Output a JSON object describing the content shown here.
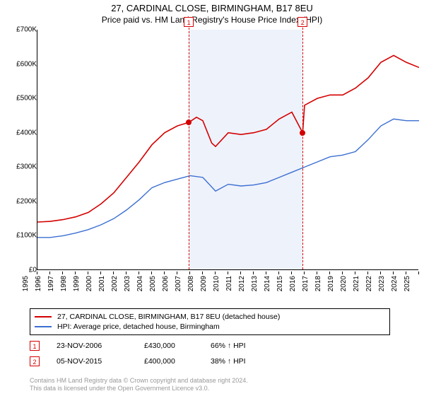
{
  "title_line1": "27, CARDINAL CLOSE, BIRMINGHAM, B17 8EU",
  "title_line2": "Price paid vs. HM Land Registry's House Price Index (HPI)",
  "chart": {
    "type": "line",
    "background_color": "#ffffff",
    "shaded_band_color": "#eef2fb",
    "axis_color": "#000000",
    "series": [
      {
        "key": "property",
        "label": "   27, CARDINAL CLOSE, BIRMINGHAM, B17 8EU (detached house)",
        "color": "#d40000",
        "line_width": 1.6,
        "data": [
          [
            1995,
            140000
          ],
          [
            1996,
            142000
          ],
          [
            1997,
            147000
          ],
          [
            1998,
            155000
          ],
          [
            1999,
            168000
          ],
          [
            2000,
            193000
          ],
          [
            2001,
            225000
          ],
          [
            2002,
            270000
          ],
          [
            2003,
            315000
          ],
          [
            2004,
            365000
          ],
          [
            2005,
            400000
          ],
          [
            2006,
            420000
          ],
          [
            2006.9,
            430000
          ],
          [
            2007.5,
            445000
          ],
          [
            2008,
            435000
          ],
          [
            2008.7,
            370000
          ],
          [
            2009,
            360000
          ],
          [
            2010,
            400000
          ],
          [
            2011,
            395000
          ],
          [
            2012,
            400000
          ],
          [
            2013,
            410000
          ],
          [
            2014,
            440000
          ],
          [
            2015,
            460000
          ],
          [
            2015.85,
            400000
          ],
          [
            2016,
            480000
          ],
          [
            2017,
            500000
          ],
          [
            2018,
            510000
          ],
          [
            2019,
            510000
          ],
          [
            2020,
            530000
          ],
          [
            2021,
            560000
          ],
          [
            2022,
            605000
          ],
          [
            2023,
            625000
          ],
          [
            2024,
            605000
          ],
          [
            2025,
            590000
          ]
        ]
      },
      {
        "key": "hpi",
        "label": "   HPI: Average price, detached house, Birmingham",
        "color": "#3b6fd1",
        "line_width": 1.4,
        "data": [
          [
            1995,
            95000
          ],
          [
            1996,
            95000
          ],
          [
            1997,
            100000
          ],
          [
            1998,
            108000
          ],
          [
            1999,
            118000
          ],
          [
            2000,
            132000
          ],
          [
            2001,
            150000
          ],
          [
            2002,
            175000
          ],
          [
            2003,
            205000
          ],
          [
            2004,
            240000
          ],
          [
            2005,
            255000
          ],
          [
            2006,
            265000
          ],
          [
            2007,
            275000
          ],
          [
            2008,
            270000
          ],
          [
            2009,
            230000
          ],
          [
            2010,
            250000
          ],
          [
            2011,
            245000
          ],
          [
            2012,
            248000
          ],
          [
            2013,
            255000
          ],
          [
            2014,
            270000
          ],
          [
            2015,
            285000
          ],
          [
            2016,
            300000
          ],
          [
            2017,
            315000
          ],
          [
            2018,
            330000
          ],
          [
            2019,
            335000
          ],
          [
            2020,
            345000
          ],
          [
            2021,
            380000
          ],
          [
            2022,
            420000
          ],
          [
            2023,
            440000
          ],
          [
            2024,
            435000
          ],
          [
            2025,
            435000
          ]
        ]
      }
    ],
    "markers": [
      {
        "id": "1",
        "year": 2006.9,
        "value": 430000,
        "color": "#d40000"
      },
      {
        "id": "2",
        "year": 2015.85,
        "value": 400000,
        "color": "#d40000"
      }
    ],
    "shaded_band": {
      "from_year": 2006.9,
      "to_year": 2015.85
    },
    "x_axis": {
      "min": 1995,
      "max": 2025,
      "ticks": [
        1995,
        1996,
        1997,
        1998,
        1999,
        2000,
        2001,
        2002,
        2003,
        2004,
        2005,
        2006,
        2007,
        2008,
        2009,
        2010,
        2011,
        2012,
        2013,
        2014,
        2015,
        2016,
        2017,
        2018,
        2019,
        2020,
        2021,
        2022,
        2023,
        2024,
        2025
      ],
      "label_fontsize": 10
    },
    "y_axis": {
      "min": 0,
      "max": 700000,
      "ticks": [
        0,
        100000,
        200000,
        300000,
        400000,
        500000,
        600000,
        700000
      ],
      "tick_labels": [
        "£0",
        "£100K",
        "£200K",
        "£300K",
        "£400K",
        "£500K",
        "£600K",
        "£700K"
      ],
      "label_fontsize": 10
    }
  },
  "legend": {
    "rows": [
      {
        "color": "#d40000",
        "label": "   27, CARDINAL CLOSE, BIRMINGHAM, B17 8EU (detached house)"
      },
      {
        "color": "#3b6fd1",
        "label": "   HPI: Average price, detached house, Birmingham"
      }
    ]
  },
  "sales": [
    {
      "id": "1",
      "color": "#d40000",
      "date": "23-NOV-2006",
      "price": "£430,000",
      "pct": "66% ↑ HPI"
    },
    {
      "id": "2",
      "color": "#d40000",
      "date": "05-NOV-2015",
      "price": "£400,000",
      "pct": "38% ↑ HPI"
    }
  ],
  "footer": {
    "line1": "Contains HM Land Registry data © Crown copyright and database right 2024.",
    "line2": "This data is licensed under the Open Government Licence v3.0."
  }
}
